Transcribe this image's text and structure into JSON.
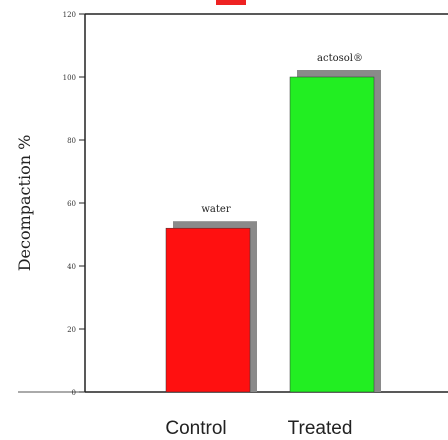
{
  "chart_data": {
    "type": "bar",
    "categories": [
      "Control",
      "Treated"
    ],
    "values": [
      52,
      100
    ],
    "bar_labels": [
      "water",
      "actosol®"
    ],
    "colors": [
      "#ff1010",
      "#22ee22"
    ],
    "ylabel": "Decompaction %",
    "xlabel": "",
    "ylim": [
      0,
      120
    ],
    "yticks": [
      0,
      20,
      40,
      60,
      80,
      100,
      120
    ],
    "grid": false,
    "legend": "none"
  }
}
